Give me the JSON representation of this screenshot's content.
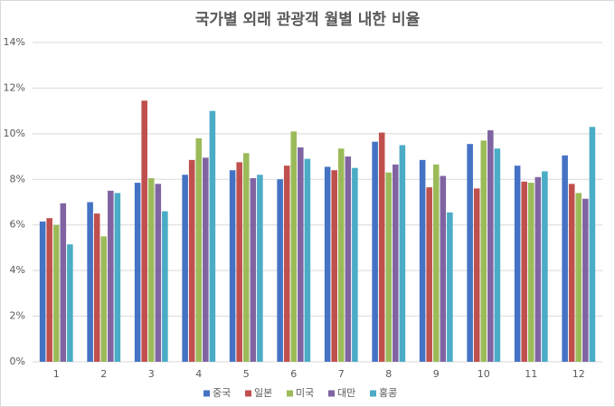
{
  "chart_data": {
    "type": "bar",
    "title": "국가별 외래 관광객 월별 내한 비율",
    "categories": [
      "1",
      "2",
      "3",
      "4",
      "5",
      "6",
      "7",
      "8",
      "9",
      "10",
      "11",
      "12"
    ],
    "series": [
      {
        "name": "중국",
        "color": "#4472c4",
        "values": [
          6.15,
          7.0,
          7.85,
          8.2,
          8.4,
          8.0,
          8.55,
          9.65,
          8.85,
          9.55,
          8.6,
          9.05
        ]
      },
      {
        "name": "일본",
        "color": "#c0504d",
        "values": [
          6.3,
          6.5,
          11.45,
          8.85,
          8.75,
          8.6,
          8.4,
          10.05,
          7.65,
          7.6,
          7.9,
          7.8
        ]
      },
      {
        "name": "미국",
        "color": "#9bbb59",
        "values": [
          6.0,
          5.5,
          8.05,
          9.8,
          9.15,
          10.1,
          9.35,
          8.3,
          8.65,
          9.7,
          7.85,
          7.4
        ]
      },
      {
        "name": "대만",
        "color": "#8064a2",
        "values": [
          6.95,
          7.5,
          7.8,
          8.95,
          8.05,
          9.4,
          9.0,
          8.65,
          8.15,
          10.15,
          8.1,
          7.15
        ]
      },
      {
        "name": "홍콩",
        "color": "#4bacc6",
        "values": [
          5.15,
          7.4,
          6.6,
          11.0,
          8.2,
          8.9,
          8.5,
          9.5,
          6.55,
          9.35,
          8.35,
          10.3
        ]
      }
    ],
    "ylim": [
      0,
      14
    ],
    "yticks": [
      {
        "value": 0,
        "label": "0%"
      },
      {
        "value": 2,
        "label": "2%"
      },
      {
        "value": 4,
        "label": "4%"
      },
      {
        "value": 6,
        "label": "6%"
      },
      {
        "value": 8,
        "label": "8%"
      },
      {
        "value": 10,
        "label": "10%"
      },
      {
        "value": 12,
        "label": "12%"
      },
      {
        "value": 14,
        "label": "14%"
      }
    ],
    "grid": true,
    "legend": "bottom"
  }
}
